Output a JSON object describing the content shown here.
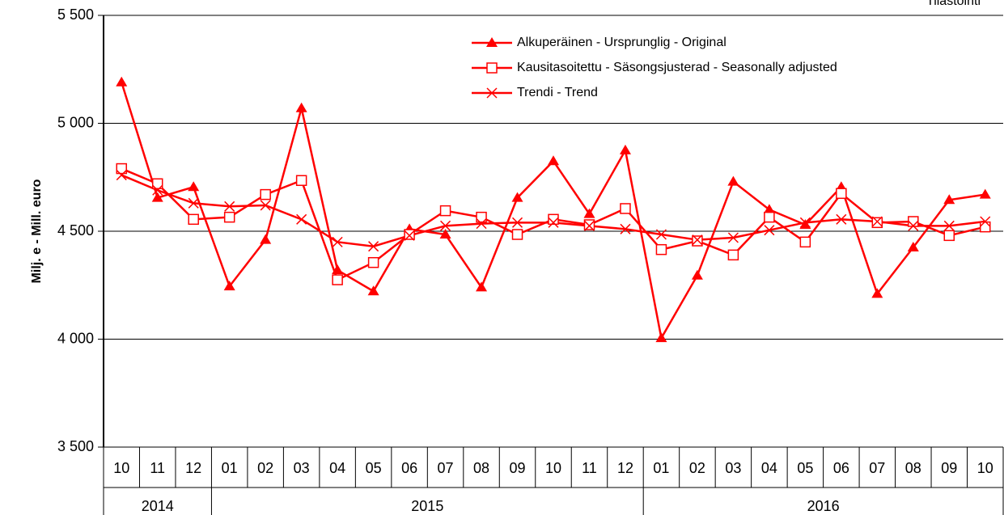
{
  "chart_data": {
    "type": "line",
    "annotation": "Tilastointi",
    "y_label": "Milj. e - Mill. euro",
    "categories": [
      "10",
      "11",
      "12",
      "01",
      "02",
      "03",
      "04",
      "05",
      "06",
      "07",
      "08",
      "09",
      "10",
      "11",
      "12",
      "01",
      "02",
      "03",
      "04",
      "05",
      "06",
      "07",
      "08",
      "09",
      "10"
    ],
    "year_groups": [
      {
        "label": "2014",
        "months": 3
      },
      {
        "label": "2015",
        "months": 12
      },
      {
        "label": "2016",
        "months": 10
      }
    ],
    "ylim": [
      3500,
      5500
    ],
    "yticks": [
      {
        "value": 3500,
        "label": "3 500"
      },
      {
        "value": 4000,
        "label": "4 000"
      },
      {
        "value": 4500,
        "label": "4 500"
      },
      {
        "value": 5000,
        "label": "5 000"
      },
      {
        "value": 5500,
        "label": "5 500"
      }
    ],
    "grid": true,
    "legend": "top-center",
    "series": [
      {
        "name": "Alkuperäinen - Ursprunglig - Original",
        "color": "#ff0000",
        "marker": "triangle",
        "values": [
          5190,
          4655,
          4705,
          4245,
          4460,
          5070,
          4320,
          4222,
          4510,
          4485,
          4240,
          4655,
          4825,
          4580,
          4875,
          4005,
          4295,
          4730,
          4600,
          4530,
          4705,
          4210,
          4425,
          4645,
          4670
        ]
      },
      {
        "name": "Kausitasoitettu - Säsongsjusterad - Seasonally adjusted",
        "color": "#ff0000",
        "marker": "square",
        "values": [
          4790,
          4720,
          4555,
          4565,
          4670,
          4735,
          4275,
          4355,
          4485,
          4595,
          4565,
          4485,
          4555,
          4530,
          4605,
          4415,
          4455,
          4390,
          4565,
          4450,
          4675,
          4540,
          4545,
          4480,
          4520
        ]
      },
      {
        "name": "Trendi - Trend",
        "color": "#ff0000",
        "marker": "x",
        "values": [
          4760,
          4690,
          4630,
          4615,
          4620,
          4555,
          4450,
          4430,
          4480,
          4525,
          4535,
          4540,
          4540,
          4525,
          4510,
          4485,
          4460,
          4470,
          4505,
          4540,
          4555,
          4545,
          4525,
          4525,
          4545
        ]
      }
    ]
  }
}
